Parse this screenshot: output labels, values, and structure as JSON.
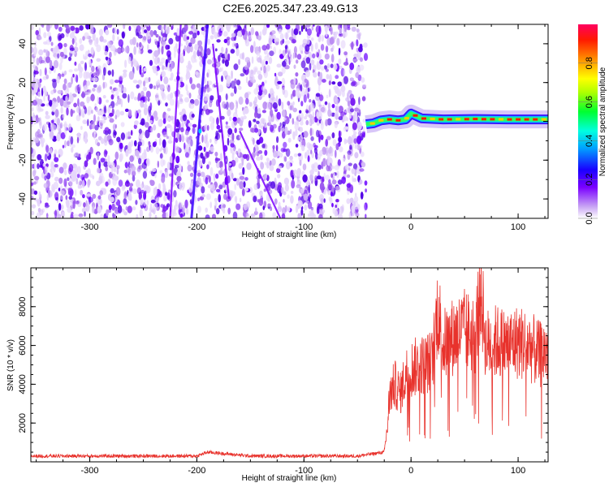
{
  "title": "C2E6.2025.347.23.49.G13",
  "chart_data": [
    {
      "type": "heatmap",
      "xlabel": "Height of straight line (km)",
      "ylabel": "Frequency (Hz)",
      "xlim": [
        -355,
        128
      ],
      "ylim": [
        -50,
        50
      ],
      "x_ticks": [
        -300,
        -200,
        -100,
        0,
        100
      ],
      "y_ticks": [
        -40,
        -20,
        0,
        20,
        40
      ],
      "colorbar": {
        "label": "Normalized spectral amplitude",
        "range": [
          0,
          1
        ],
        "ticks": [
          0.0,
          0.2,
          0.4,
          0.6,
          0.8
        ],
        "tick_labels": [
          "0.0",
          "0.2",
          "0.4",
          "0.6",
          "0.8"
        ]
      },
      "noise_region_x": [
        -355,
        -42
      ],
      "quiet_region_x": [
        -42,
        128
      ],
      "carrier_track": {
        "x": [
          -42,
          -35,
          -28,
          -20,
          -12,
          -5,
          0,
          10,
          30,
          60,
          90,
          110,
          128
        ],
        "y": [
          -1.5,
          -1,
          0.5,
          1,
          0.5,
          1,
          4,
          1.5,
          1,
          1.2,
          1,
          1,
          1
        ]
      },
      "diagonal_streaks": [
        {
          "x": [
            -190,
            -205
          ],
          "y": [
            50,
            -50
          ]
        },
        {
          "x": [
            -215,
            -225
          ],
          "y": [
            50,
            -50
          ]
        },
        {
          "x": [
            -185,
            -170
          ],
          "y": [
            40,
            -40
          ]
        },
        {
          "x": [
            -160,
            -122
          ],
          "y": [
            -5,
            -50
          ]
        }
      ]
    },
    {
      "type": "line",
      "xlabel": "Height of straight line (km)",
      "ylabel": "SNR (10 * v/v)",
      "xlim": [
        -355,
        128
      ],
      "ylim": [
        0,
        10000
      ],
      "x_ticks": [
        -300,
        -200,
        -100,
        0,
        100
      ],
      "y_ticks": [
        2000,
        4000,
        6000,
        8000
      ],
      "series": [
        {
          "color": "#e8322c",
          "x": [
            -355,
            -300,
            -250,
            -200,
            -190,
            -150,
            -100,
            -50,
            -25,
            -22,
            -20,
            -15,
            -10,
            -5,
            0,
            10,
            20,
            25,
            30,
            40,
            50,
            60,
            65,
            70,
            80,
            90,
            100,
            110,
            120,
            128
          ],
          "y": [
            300,
            300,
            300,
            300,
            500,
            300,
            300,
            300,
            500,
            1800,
            3500,
            4000,
            3500,
            4500,
            4800,
            5000,
            5200,
            8000,
            6000,
            6500,
            6800,
            6500,
            9000,
            6000,
            6200,
            6000,
            6200,
            6000,
            5500,
            5800
          ]
        }
      ]
    }
  ]
}
